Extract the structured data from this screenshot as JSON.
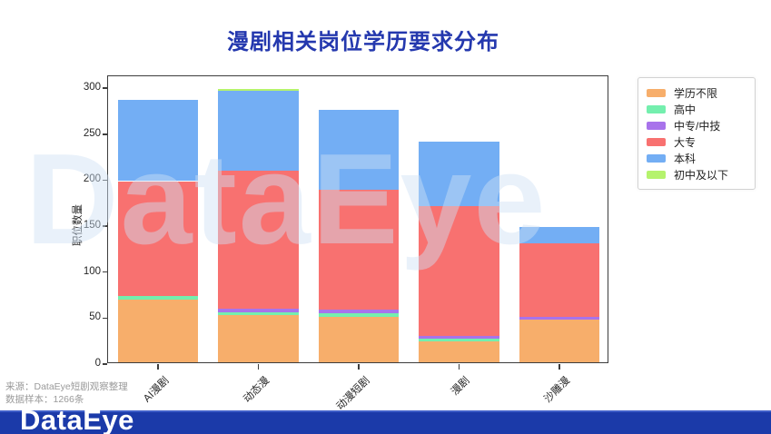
{
  "title": "漫剧相关岗位学历要求分布",
  "watermark": "DataEye",
  "brand": {
    "title_color": "#2438AE",
    "footer_bg": "#1B3AA9",
    "watermark_color": "#CFE2F6"
  },
  "source": {
    "line1": "来源：DataEye短剧观察整理",
    "line2": "数据样本：1266条"
  },
  "footer_logo": "DataEye",
  "chart_data": {
    "type": "bar",
    "stacked": true,
    "title": "漫剧相关岗位学历要求分布",
    "categories": [
      "AI漫剧",
      "动态漫",
      "动漫短剧",
      "漫剧",
      "沙雕漫"
    ],
    "series": [
      {
        "name": "学历不限",
        "color": "#F7AE6B",
        "values": [
          68,
          51,
          49,
          23,
          46
        ]
      },
      {
        "name": "高中",
        "color": "#74EFAE",
        "values": [
          4,
          3,
          4,
          3,
          0
        ]
      },
      {
        "name": "中专/中技",
        "color": "#A873EB",
        "values": [
          0,
          4,
          4,
          3,
          3
        ]
      },
      {
        "name": "大专",
        "color": "#F87170",
        "values": [
          125,
          150,
          131,
          141,
          80
        ]
      },
      {
        "name": "本科",
        "color": "#73AEF4",
        "values": [
          88,
          87,
          87,
          70,
          18
        ]
      },
      {
        "name": "初中及以下",
        "color": "#B5F36D",
        "values": [
          0,
          2,
          0,
          0,
          0
        ]
      }
    ],
    "totals": [
      285,
      297,
      275,
      240,
      147
    ],
    "xlabel": "",
    "ylabel": "职位数量",
    "yticks": [
      0,
      50,
      100,
      150,
      200,
      250,
      300
    ],
    "ylim": [
      0,
      313
    ],
    "grid": false,
    "legend_position": "outside-upper-right"
  }
}
